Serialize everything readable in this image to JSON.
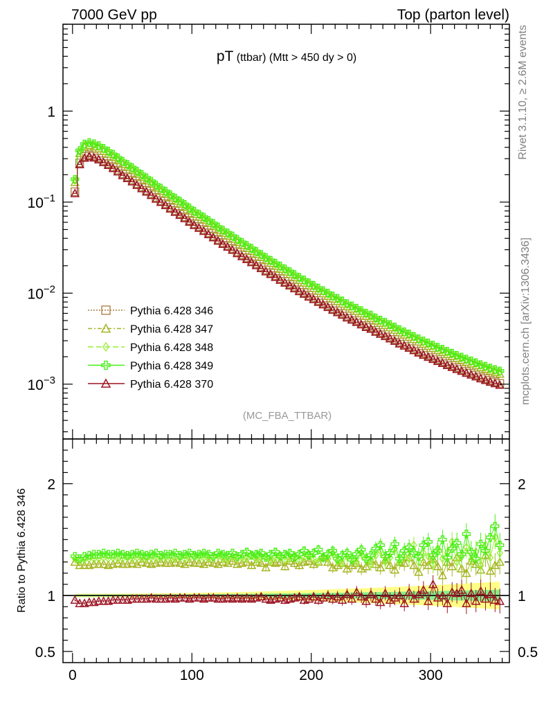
{
  "header": {
    "left": "7000 GeV pp",
    "right": "Top (parton level)"
  },
  "side_text": {
    "rivet": "Rivet 3.1.10, ≥ 2.6M events",
    "mcplots": "mcplots.cern.ch [arXiv:1306.3436]"
  },
  "colors": {
    "p346": "#a87a3c",
    "p347": "#a6b522",
    "p348": "#99ee33",
    "p349": "#44ee11",
    "p370": "#9b1423",
    "band_yellow": "#ffff88",
    "band_green": "#88ee88"
  },
  "chart_data": [
    {
      "type": "line",
      "title_main": "pT",
      "title_sub": "(ttbar)",
      "title_cond": "(Mtt > 450 dy > 0)",
      "watermark": "(MC_FBA_TTBAR)",
      "xlabel": "",
      "ylabel": "",
      "yscale": "log",
      "ylim": [
        0.00025,
        9
      ],
      "xlim": [
        -8,
        366
      ],
      "yticks": [
        {
          "v": 1,
          "base": "1",
          "exp": ""
        },
        {
          "v": 0.1,
          "base": "10",
          "exp": "−1"
        },
        {
          "v": 0.01,
          "base": "10",
          "exp": "−2"
        },
        {
          "v": 0.001,
          "base": "10",
          "exp": "−3"
        }
      ],
      "xticks": [
        0,
        100,
        200,
        300
      ],
      "legend_position": "lower-left",
      "series": [
        {
          "name": "Pythia 6.428 346",
          "color_key": "p346",
          "marker": "square-open",
          "dash": "2,2",
          "scale": 1.0
        },
        {
          "name": "Pythia 6.428 347",
          "color_key": "p347",
          "marker": "triangle-open",
          "dash": "6,3,2,3",
          "scale": 1.27
        },
        {
          "name": "Pythia 6.428 348",
          "color_key": "p348",
          "marker": "diamond-open",
          "dash": "8,4",
          "scale": 1.33
        },
        {
          "name": "Pythia 6.428 349",
          "color_key": "p349",
          "marker": "cross-open",
          "dash": "",
          "scale": 1.37
        },
        {
          "name": "Pythia 6.428 370",
          "color_key": "p370",
          "marker": "triangle-open",
          "dash": "",
          "scale": 0.96
        }
      ],
      "x": [
        2,
        6,
        10,
        14,
        18,
        22,
        26,
        30,
        34,
        38,
        42,
        46,
        50,
        54,
        58,
        62,
        66,
        70,
        74,
        78,
        82,
        86,
        90,
        94,
        98,
        102,
        106,
        110,
        114,
        118,
        122,
        126,
        130,
        134,
        138,
        142,
        146,
        150,
        154,
        158,
        162,
        166,
        170,
        174,
        178,
        182,
        186,
        190,
        194,
        198,
        202,
        206,
        210,
        214,
        218,
        222,
        226,
        230,
        234,
        238,
        242,
        246,
        250,
        254,
        258,
        262,
        266,
        270,
        274,
        278,
        282,
        286,
        290,
        294,
        298,
        302,
        306,
        310,
        314,
        318,
        322,
        326,
        330,
        334,
        338,
        342,
        346,
        350,
        354,
        358
      ],
      "base_values": [
        0.13,
        0.27,
        0.318,
        0.33,
        0.32,
        0.305,
        0.285,
        0.265,
        0.245,
        0.225,
        0.205,
        0.19,
        0.175,
        0.16,
        0.147,
        0.135,
        0.124,
        0.113,
        0.104,
        0.096,
        0.088,
        0.081,
        0.075,
        0.069,
        0.063,
        0.058,
        0.054,
        0.05,
        0.046,
        0.0425,
        0.039,
        0.036,
        0.0335,
        0.031,
        0.0285,
        0.0264,
        0.0245,
        0.0227,
        0.021,
        0.0195,
        0.018,
        0.0168,
        0.0156,
        0.0145,
        0.0135,
        0.0126,
        0.0117,
        0.0109,
        0.0102,
        0.0095,
        0.0089,
        0.0083,
        0.0078,
        0.0073,
        0.0068,
        0.0064,
        0.006,
        0.0056,
        0.0053,
        0.005,
        0.0047,
        0.0044,
        0.0042,
        0.0039,
        0.0037,
        0.0035,
        0.0033,
        0.0031,
        0.0029,
        0.00275,
        0.0026,
        0.00245,
        0.0023,
        0.00218,
        0.00207,
        0.00196,
        0.00186,
        0.00177,
        0.00168,
        0.0016,
        0.00152,
        0.00145,
        0.00138,
        0.00132,
        0.00126,
        0.0012,
        0.00115,
        0.0011,
        0.00106,
        0.00102
      ]
    },
    {
      "type": "line",
      "ylabel": "Ratio to Pythia 6.428 346",
      "xlabel": "",
      "ylim": [
        0.4,
        2.4
      ],
      "xlim": [
        -8,
        366
      ],
      "yticks": [
        {
          "v": 2,
          "label": "2"
        },
        {
          "v": 1,
          "label": "1"
        },
        {
          "v": 0.5,
          "label": "0.5"
        }
      ],
      "xticks": [
        0,
        100,
        200,
        300
      ],
      "reference_line": 1.0,
      "x": [
        2,
        6,
        10,
        14,
        18,
        22,
        26,
        30,
        34,
        38,
        42,
        46,
        50,
        54,
        58,
        62,
        66,
        70,
        74,
        78,
        82,
        86,
        90,
        94,
        98,
        102,
        106,
        110,
        114,
        118,
        122,
        126,
        130,
        134,
        138,
        142,
        146,
        150,
        154,
        158,
        162,
        166,
        170,
        174,
        178,
        182,
        186,
        190,
        194,
        198,
        202,
        206,
        210,
        214,
        218,
        222,
        226,
        230,
        234,
        238,
        242,
        246,
        250,
        254,
        258,
        262,
        266,
        270,
        274,
        278,
        282,
        286,
        290,
        294,
        298,
        302,
        306,
        310,
        314,
        318,
        322,
        326,
        330,
        334,
        338,
        342,
        346,
        350,
        354,
        358
      ],
      "series": [
        {
          "name": "Pythia 6.428 347",
          "color_key": "p347",
          "marker": "triangle-open",
          "values": [
            1.3,
            1.27,
            1.27,
            1.27,
            1.28,
            1.28,
            1.28,
            1.27,
            1.28,
            1.29,
            1.28,
            1.28,
            1.29,
            1.28,
            1.3,
            1.29,
            1.28,
            1.29,
            1.3,
            1.29,
            1.29,
            1.3,
            1.29,
            1.28,
            1.3,
            1.29,
            1.29,
            1.28,
            1.3,
            1.29,
            1.28,
            1.3,
            1.29,
            1.31,
            1.28,
            1.29,
            1.3,
            1.27,
            1.3,
            1.29,
            1.25,
            1.3,
            1.29,
            1.3,
            1.26,
            1.31,
            1.29,
            1.27,
            1.3,
            1.31,
            1.28,
            1.3,
            1.34,
            1.3,
            1.25,
            1.27,
            1.29,
            1.24,
            1.27,
            1.29,
            1.24,
            1.26,
            1.31,
            1.28,
            1.25,
            1.32,
            1.27,
            1.23,
            1.3,
            1.29,
            1.34,
            1.27,
            1.21,
            1.3,
            1.27,
            1.33,
            1.26,
            1.18,
            1.3,
            1.26,
            1.34,
            1.24,
            1.2,
            1.31,
            1.28,
            1.23,
            1.36,
            1.22,
            1.27,
            1.3
          ]
        },
        {
          "name": "Pythia 6.428 348",
          "color_key": "p348",
          "marker": "diamond-open",
          "values": [
            1.33,
            1.31,
            1.32,
            1.33,
            1.33,
            1.33,
            1.34,
            1.33,
            1.34,
            1.33,
            1.33,
            1.34,
            1.33,
            1.34,
            1.33,
            1.33,
            1.34,
            1.33,
            1.34,
            1.34,
            1.33,
            1.33,
            1.34,
            1.33,
            1.34,
            1.35,
            1.33,
            1.34,
            1.33,
            1.34,
            1.35,
            1.33,
            1.32,
            1.35,
            1.33,
            1.34,
            1.33,
            1.36,
            1.32,
            1.34,
            1.35,
            1.31,
            1.34,
            1.36,
            1.32,
            1.33,
            1.36,
            1.32,
            1.34,
            1.37,
            1.33,
            1.3,
            1.35,
            1.33,
            1.38,
            1.31,
            1.29,
            1.35,
            1.33,
            1.3,
            1.38,
            1.32,
            1.28,
            1.36,
            1.4,
            1.3,
            1.34,
            1.42,
            1.3,
            1.36,
            1.33,
            1.45,
            1.3,
            1.38,
            1.35,
            1.28,
            1.42,
            1.33,
            1.38,
            1.48,
            1.3,
            1.35,
            1.43,
            1.32,
            1.39,
            1.27,
            1.45,
            1.34,
            1.52,
            1.38
          ]
        },
        {
          "name": "Pythia 6.428 349",
          "color_key": "p349",
          "marker": "cross-open",
          "values": [
            1.35,
            1.33,
            1.35,
            1.36,
            1.37,
            1.37,
            1.38,
            1.37,
            1.37,
            1.38,
            1.37,
            1.36,
            1.37,
            1.38,
            1.37,
            1.36,
            1.37,
            1.38,
            1.36,
            1.37,
            1.37,
            1.38,
            1.36,
            1.37,
            1.38,
            1.36,
            1.37,
            1.38,
            1.37,
            1.35,
            1.38,
            1.37,
            1.36,
            1.38,
            1.35,
            1.37,
            1.39,
            1.36,
            1.37,
            1.38,
            1.34,
            1.37,
            1.39,
            1.35,
            1.37,
            1.38,
            1.34,
            1.37,
            1.4,
            1.36,
            1.38,
            1.41,
            1.34,
            1.37,
            1.4,
            1.33,
            1.36,
            1.38,
            1.32,
            1.37,
            1.41,
            1.33,
            1.36,
            1.42,
            1.45,
            1.35,
            1.38,
            1.46,
            1.33,
            1.4,
            1.43,
            1.38,
            1.35,
            1.45,
            1.48,
            1.36,
            1.4,
            1.5,
            1.34,
            1.42,
            1.47,
            1.37,
            1.55,
            1.39,
            1.33,
            1.46,
            1.4,
            1.52,
            1.62,
            1.45
          ]
        },
        {
          "name": "Pythia 6.428 370",
          "color_key": "p370",
          "marker": "triangle-open",
          "values": [
            0.96,
            0.93,
            0.93,
            0.94,
            0.94,
            0.95,
            0.95,
            0.95,
            0.96,
            0.96,
            0.96,
            0.96,
            0.97,
            0.97,
            0.97,
            0.97,
            0.98,
            0.97,
            0.97,
            0.97,
            0.98,
            0.97,
            0.98,
            0.98,
            0.97,
            0.98,
            0.98,
            0.97,
            0.98,
            0.98,
            0.97,
            0.97,
            0.98,
            0.97,
            0.98,
            0.97,
            0.98,
            0.97,
            0.98,
            0.99,
            0.97,
            0.96,
            0.97,
            0.98,
            0.96,
            0.97,
            0.98,
            0.99,
            0.96,
            0.97,
            0.99,
            0.96,
            0.98,
            1.0,
            0.97,
            0.99,
            0.96,
            1.01,
            0.97,
            1.03,
            0.99,
            0.95,
            1.01,
            0.97,
            0.94,
            1.02,
            0.96,
            0.98,
            1.0,
            0.93,
            1.03,
            0.97,
            1.01,
            1.05,
            0.95,
            1.1,
            0.98,
            1.0,
            0.93,
            1.03,
            1.02,
            1.05,
            0.93,
            1.02,
            0.95,
            1.04,
            0.97,
            1.01,
            0.96,
            0.95
          ]
        }
      ]
    }
  ]
}
